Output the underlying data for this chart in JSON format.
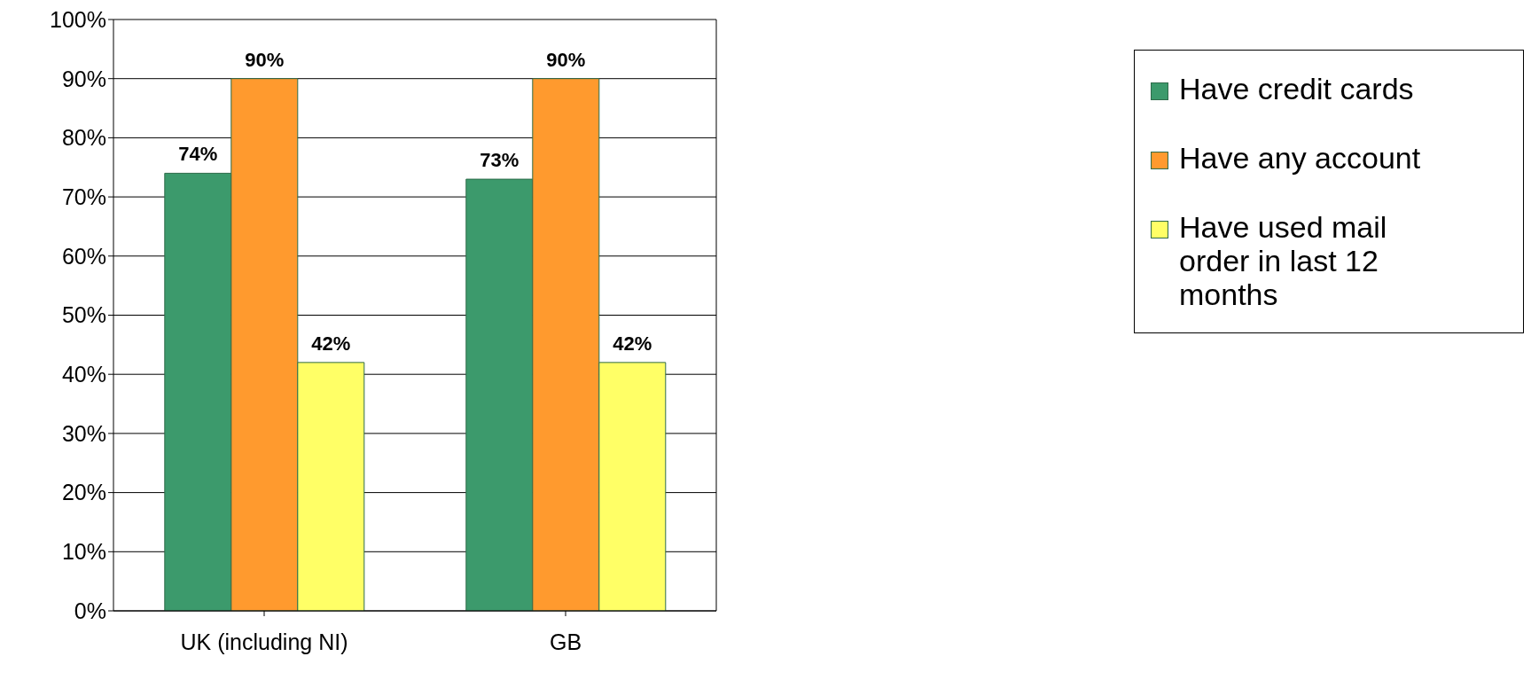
{
  "chart_data": {
    "type": "bar",
    "categories": [
      "UK (including NI)",
      "GB"
    ],
    "series": [
      {
        "name": "Have credit cards",
        "color": "#3c9a6c",
        "values": [
          74,
          73
        ],
        "value_labels": [
          "74%",
          "73%"
        ]
      },
      {
        "name": "Have any account",
        "color": "#ff9a2e",
        "values": [
          90,
          90
        ],
        "value_labels": [
          "90%",
          "90%"
        ]
      },
      {
        "name": "Have used mail order in last 12 months",
        "color": "#ffff66",
        "values": [
          42,
          42
        ],
        "value_labels": [
          "42%",
          "42%"
        ]
      }
    ],
    "ylim": [
      0,
      100
    ],
    "yticks": [
      {
        "value": 0,
        "label": "0%"
      },
      {
        "value": 10,
        "label": "10%"
      },
      {
        "value": 20,
        "label": "20%"
      },
      {
        "value": 30,
        "label": "30%"
      },
      {
        "value": 40,
        "label": "40%"
      },
      {
        "value": 50,
        "label": "50%"
      },
      {
        "value": 60,
        "label": "60%"
      },
      {
        "value": 70,
        "label": "70%"
      },
      {
        "value": 80,
        "label": "80%"
      },
      {
        "value": 90,
        "label": "90%"
      },
      {
        "value": 100,
        "label": "100%"
      }
    ],
    "grid": "y",
    "legend": "right"
  }
}
